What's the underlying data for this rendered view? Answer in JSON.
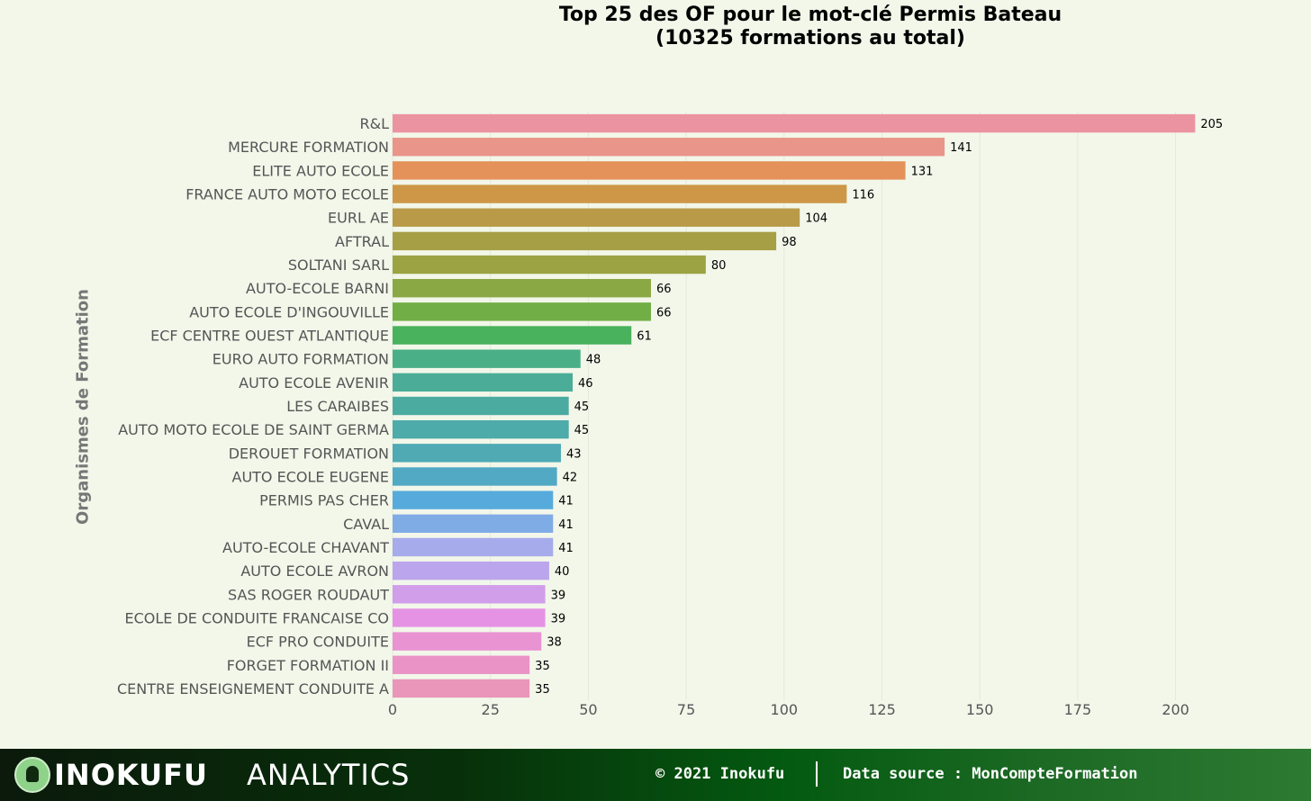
{
  "chart_data": {
    "type": "bar",
    "orientation": "horizontal",
    "title": "Top 25 des OF pour le mot-clé Permis Bateau\n(10325 formations au total)",
    "xlabel": "",
    "ylabel": "Organismes de Formation",
    "xlim": [
      0,
      215
    ],
    "xticks": [
      0,
      25,
      50,
      75,
      100,
      125,
      150,
      175,
      200
    ],
    "grid": true,
    "categories": [
      "R&L",
      "MERCURE FORMATION",
      "ELITE AUTO ECOLE",
      "FRANCE AUTO MOTO ECOLE",
      "EURL AE",
      "AFTRAL",
      "SOLTANI SARL",
      "AUTO-ECOLE BARNI",
      "AUTO ECOLE D'INGOUVILLE",
      "ECF CENTRE OUEST ATLANTIQUE",
      "EURO AUTO FORMATION",
      "AUTO ECOLE AVENIR",
      "LES CARAIBES",
      "AUTO MOTO ECOLE DE SAINT GERMA",
      "DEROUET FORMATION",
      "AUTO ECOLE EUGENE",
      "PERMIS PAS CHER",
      "CAVAL",
      "AUTO-ECOLE CHAVANT",
      "AUTO ECOLE AVRON",
      "SAS ROGER ROUDAUT",
      "ECOLE DE CONDUITE FRANCAISE CO",
      "ECF PRO CONDUITE",
      "FORGET FORMATION II",
      "CENTRE ENSEIGNEMENT CONDUITE A"
    ],
    "values": [
      205,
      141,
      131,
      116,
      104,
      98,
      80,
      66,
      66,
      61,
      48,
      46,
      45,
      45,
      43,
      42,
      41,
      41,
      41,
      40,
      39,
      39,
      38,
      35,
      35
    ],
    "colors": [
      "#eb93a0",
      "#e9958a",
      "#e5925a",
      "#cd9747",
      "#b89a48",
      "#a69f45",
      "#9ba342",
      "#8aa843",
      "#71ae45",
      "#48b25c",
      "#4aaf86",
      "#4bad97",
      "#4caba1",
      "#4daba9",
      "#4faab4",
      "#52a9c4",
      "#57abdc",
      "#80ace6",
      "#a5abeb",
      "#bba5ec",
      "#d19eea",
      "#e592e4",
      "#e993d2",
      "#e993c6",
      "#ea95ba"
    ]
  },
  "footer": {
    "brand_name": "INOKUFU",
    "brand_sub": "ANALYTICS",
    "copyright": "© 2021 Inokufu",
    "data_source": "Data source : MonCompteFormation"
  }
}
